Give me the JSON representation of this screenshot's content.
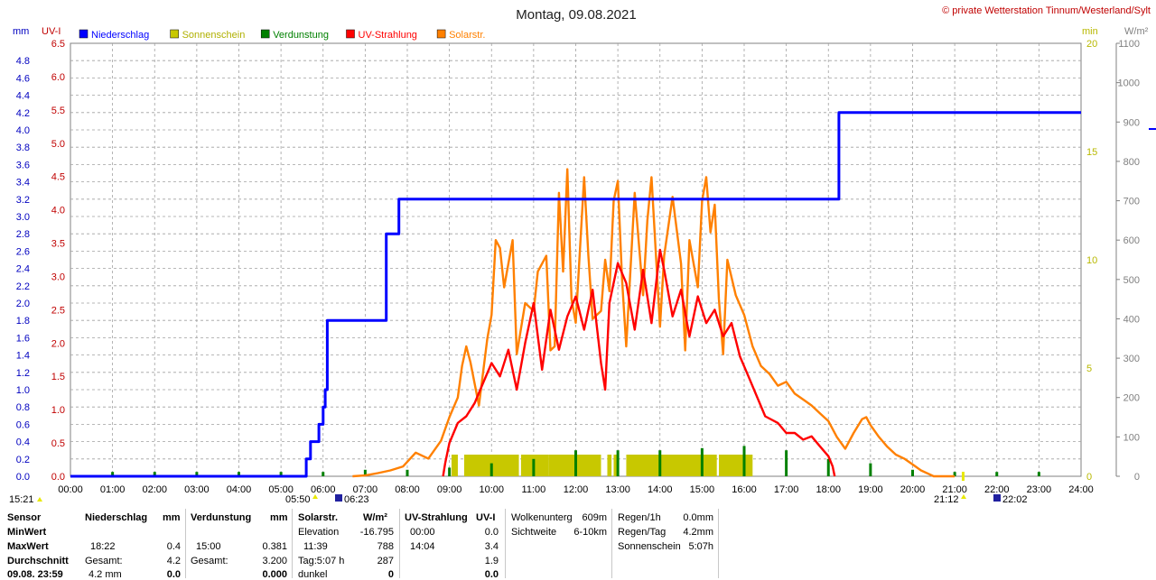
{
  "title": "Montag, 09.08.2021",
  "copyright": "© private Wetterstation Tinnum/Westerland/Sylt",
  "colors": {
    "niederschlag": "#0000ff",
    "sonnenschein": "#c8c800",
    "verdunstung": "#008000",
    "uv": "#ff0000",
    "solar": "#ff8000",
    "grid": "#a0a0a0",
    "left_axis_mm": "#0000c0",
    "left_axis_uv": "#c00000",
    "right_axis_min": "#b8b800",
    "right_axis_w": "#808080"
  },
  "chart_data": {
    "type": "line",
    "xlabels": [
      "00:00",
      "01:00",
      "02:00",
      "03:00",
      "04:00",
      "05:00",
      "06:00",
      "07:00",
      "08:00",
      "09:00",
      "10:00",
      "11:00",
      "12:00",
      "13:00",
      "14:00",
      "15:00",
      "16:00",
      "17:00",
      "18:00",
      "19:00",
      "20:00",
      "21:00",
      "22:00",
      "23:00",
      "24:00"
    ],
    "axes": {
      "mm": {
        "unit": "mm",
        "ticks": [
          "0.0",
          "0.2",
          "0.4",
          "0.6",
          "0.8",
          "1.0",
          "1.2",
          "1.4",
          "1.6",
          "1.8",
          "2.0",
          "2.2",
          "2.4",
          "2.6",
          "2.8",
          "3.0",
          "3.2",
          "3.4",
          "3.6",
          "3.8",
          "4.0",
          "4.2",
          "4.4",
          "4.6",
          "4.8"
        ],
        "range": [
          0,
          5.0
        ]
      },
      "uv": {
        "unit": "UV-I",
        "ticks": [
          "0.0",
          "0.5",
          "1.0",
          "1.5",
          "2.0",
          "2.5",
          "3.0",
          "3.5",
          "4.0",
          "4.5",
          "5.0",
          "5.5",
          "6.0",
          "6.5"
        ],
        "range": [
          0,
          6.5
        ]
      },
      "min": {
        "unit": "min",
        "ticks": [
          "0",
          "5",
          "10",
          "15",
          "20"
        ],
        "range": [
          0,
          20
        ]
      },
      "wm2": {
        "unit": "W/m²",
        "ticks": [
          "0",
          "100",
          "200",
          "300",
          "400",
          "500",
          "600",
          "700",
          "800",
          "900",
          "1000",
          "1100"
        ],
        "range": [
          0,
          1100
        ]
      }
    },
    "legend": [
      "Niederschlag",
      "Sonnenschein",
      "Verdunstung",
      "UV-Strahlung",
      "Solarstr."
    ],
    "series": [
      {
        "name": "Niederschlag",
        "axis": "mm",
        "step": true,
        "points": [
          [
            0,
            0
          ],
          [
            5.6,
            0
          ],
          [
            5.6,
            0.2
          ],
          [
            5.7,
            0.2
          ],
          [
            5.7,
            0.4
          ],
          [
            5.9,
            0.4
          ],
          [
            5.9,
            0.6
          ],
          [
            6.0,
            0.6
          ],
          [
            6.0,
            0.8
          ],
          [
            6.05,
            0.8
          ],
          [
            6.05,
            1.0
          ],
          [
            6.1,
            1.0
          ],
          [
            6.1,
            1.8
          ],
          [
            7.5,
            1.8
          ],
          [
            7.5,
            2.8
          ],
          [
            7.8,
            2.8
          ],
          [
            7.8,
            3.2
          ],
          [
            18.25,
            3.2
          ],
          [
            18.25,
            4.2
          ],
          [
            24,
            4.2
          ]
        ]
      },
      {
        "name": "Sonnenschein",
        "axis": "min",
        "bars": [
          [
            9.05,
            9.2
          ],
          [
            9.35,
            10.65
          ],
          [
            10.7,
            11.35
          ],
          [
            11.35,
            12.6
          ],
          [
            12.75,
            12.85
          ],
          [
            12.9,
            13.0
          ],
          [
            13.2,
            15.35
          ],
          [
            15.4,
            16.2
          ]
        ],
        "level": 1.0
      },
      {
        "name": "Verdunstung",
        "axis": "min",
        "ticks": [
          1.0,
          2.0,
          3.0,
          4.0,
          5.0,
          6.0,
          7.0,
          8.0,
          9.0,
          10.0,
          11.0,
          12.0,
          13.0,
          14.0,
          15.0,
          16.0,
          17.0,
          18.0,
          19.0,
          20.0,
          21.0,
          22.0,
          23.0
        ],
        "tick_values": [
          0.2,
          0.2,
          0.2,
          0.2,
          0.2,
          0.2,
          0.3,
          0.3,
          0.4,
          0.6,
          0.8,
          1.2,
          1.2,
          1.2,
          1.3,
          1.4,
          1.2,
          0.8,
          0.6,
          0.3,
          0.2,
          0.2,
          0.2
        ]
      },
      {
        "name": "UV-Strahlung",
        "axis": "uv",
        "points": [
          [
            8.85,
            0
          ],
          [
            8.9,
            0.2
          ],
          [
            9.0,
            0.5
          ],
          [
            9.2,
            0.8
          ],
          [
            9.4,
            0.9
          ],
          [
            9.6,
            1.1
          ],
          [
            9.8,
            1.4
          ],
          [
            10.0,
            1.7
          ],
          [
            10.2,
            1.5
          ],
          [
            10.4,
            1.9
          ],
          [
            10.6,
            1.3
          ],
          [
            10.8,
            2.0
          ],
          [
            11.0,
            2.6
          ],
          [
            11.2,
            1.6
          ],
          [
            11.4,
            2.5
          ],
          [
            11.6,
            1.9
          ],
          [
            11.8,
            2.4
          ],
          [
            12.0,
            2.7
          ],
          [
            12.2,
            2.2
          ],
          [
            12.4,
            2.8
          ],
          [
            12.6,
            1.7
          ],
          [
            12.7,
            1.3
          ],
          [
            12.8,
            2.6
          ],
          [
            13.0,
            3.2
          ],
          [
            13.2,
            2.9
          ],
          [
            13.4,
            2.2
          ],
          [
            13.6,
            3.1
          ],
          [
            13.8,
            2.3
          ],
          [
            14.0,
            3.4
          ],
          [
            14.1,
            3.1
          ],
          [
            14.3,
            2.4
          ],
          [
            14.5,
            2.8
          ],
          [
            14.7,
            2.1
          ],
          [
            14.9,
            2.7
          ],
          [
            15.1,
            2.3
          ],
          [
            15.3,
            2.5
          ],
          [
            15.5,
            2.1
          ],
          [
            15.7,
            2.3
          ],
          [
            15.9,
            1.8
          ],
          [
            16.1,
            1.5
          ],
          [
            16.3,
            1.2
          ],
          [
            16.5,
            0.9
          ],
          [
            16.8,
            0.8
          ],
          [
            17.0,
            0.65
          ],
          [
            17.2,
            0.65
          ],
          [
            17.4,
            0.55
          ],
          [
            17.6,
            0.6
          ],
          [
            17.8,
            0.45
          ],
          [
            18.0,
            0.3
          ],
          [
            18.1,
            0.15
          ],
          [
            18.15,
            0
          ]
        ]
      },
      {
        "name": "Solarstr.",
        "axis": "wm2",
        "points": [
          [
            6.7,
            0
          ],
          [
            7.0,
            2
          ],
          [
            7.3,
            8
          ],
          [
            7.6,
            15
          ],
          [
            7.9,
            25
          ],
          [
            8.2,
            60
          ],
          [
            8.5,
            45
          ],
          [
            8.8,
            90
          ],
          [
            9.0,
            150
          ],
          [
            9.2,
            200
          ],
          [
            9.3,
            280
          ],
          [
            9.4,
            330
          ],
          [
            9.5,
            290
          ],
          [
            9.7,
            180
          ],
          [
            9.9,
            350
          ],
          [
            10.0,
            410
          ],
          [
            10.1,
            600
          ],
          [
            10.2,
            580
          ],
          [
            10.3,
            480
          ],
          [
            10.5,
            600
          ],
          [
            10.6,
            310
          ],
          [
            10.8,
            440
          ],
          [
            11.0,
            420
          ],
          [
            11.1,
            520
          ],
          [
            11.3,
            560
          ],
          [
            11.4,
            320
          ],
          [
            11.5,
            330
          ],
          [
            11.6,
            720
          ],
          [
            11.7,
            520
          ],
          [
            11.8,
            780
          ],
          [
            11.9,
            450
          ],
          [
            12.0,
            390
          ],
          [
            12.2,
            760
          ],
          [
            12.3,
            560
          ],
          [
            12.4,
            400
          ],
          [
            12.6,
            420
          ],
          [
            12.7,
            550
          ],
          [
            12.8,
            470
          ],
          [
            12.9,
            700
          ],
          [
            13.0,
            750
          ],
          [
            13.1,
            500
          ],
          [
            13.2,
            330
          ],
          [
            13.4,
            720
          ],
          [
            13.6,
            460
          ],
          [
            13.7,
            650
          ],
          [
            13.8,
            760
          ],
          [
            14.0,
            380
          ],
          [
            14.1,
            560
          ],
          [
            14.3,
            710
          ],
          [
            14.5,
            540
          ],
          [
            14.6,
            320
          ],
          [
            14.7,
            600
          ],
          [
            14.9,
            480
          ],
          [
            15.0,
            700
          ],
          [
            15.1,
            760
          ],
          [
            15.2,
            620
          ],
          [
            15.3,
            690
          ],
          [
            15.4,
            450
          ],
          [
            15.5,
            310
          ],
          [
            15.6,
            550
          ],
          [
            15.8,
            460
          ],
          [
            16.0,
            410
          ],
          [
            16.2,
            330
          ],
          [
            16.4,
            280
          ],
          [
            16.6,
            260
          ],
          [
            16.8,
            230
          ],
          [
            17.0,
            240
          ],
          [
            17.2,
            210
          ],
          [
            17.4,
            195
          ],
          [
            17.6,
            180
          ],
          [
            17.8,
            160
          ],
          [
            18.0,
            140
          ],
          [
            18.2,
            100
          ],
          [
            18.4,
            70
          ],
          [
            18.6,
            110
          ],
          [
            18.8,
            145
          ],
          [
            18.9,
            150
          ],
          [
            19.0,
            130
          ],
          [
            19.2,
            100
          ],
          [
            19.4,
            75
          ],
          [
            19.6,
            55
          ],
          [
            19.8,
            45
          ],
          [
            20.0,
            30
          ],
          [
            20.2,
            15
          ],
          [
            20.4,
            5
          ],
          [
            20.5,
            0
          ],
          [
            21.0,
            0
          ]
        ]
      }
    ],
    "annotations": {
      "left_time": "15:21",
      "sunrise_start": "05:50",
      "sunrise": "06:23",
      "sunset": "21:12",
      "dusk": "22:02"
    }
  },
  "stats": {
    "row_labels": [
      "Sensor",
      "MinWert",
      "MaxWert",
      "Durchschnitt"
    ],
    "footer_date": "09.08. 23:59",
    "niederschlag": {
      "header": "Niederschlag",
      "unit": "mm",
      "max_time": "18:22",
      "max_value": "0.4",
      "gesamt_label": "Gesamt:",
      "gesamt_value": "4.2",
      "foot_a": "4.2 mm",
      "foot_b": "0.0"
    },
    "verdunstung": {
      "header": "Verdunstung",
      "unit": "mm",
      "max_time": "15:00",
      "max_value": "0.381",
      "gesamt_label": "Gesamt:",
      "gesamt_value": "3.200",
      "foot_b": "0.000"
    },
    "solar": {
      "header": "Solarstr.",
      "unit": "W/m²",
      "row1_label": "Elevation",
      "row1_value": "-16.795",
      "max_time": "11:39",
      "max_value": "788",
      "tag_label": "Tag:5:07 h",
      "tag_value": "287",
      "dunkel_label": "dunkel",
      "dunkel_value": "0"
    },
    "uv": {
      "header": "UV-Strahlung",
      "unit": "UV-I",
      "min_time": "00:00",
      "min_value": "0.0",
      "max_time": "14:04",
      "max_value": "3.4",
      "avg_value": "1.9",
      "foot_b": "0.0"
    },
    "wolken": {
      "label1": "Wolkenunterg",
      "value1": "609m",
      "label2": "Sichtweite",
      "value2": "6-10km"
    },
    "regen": {
      "label1": "Regen/1h",
      "value1": "0.0mm",
      "label2": "Regen/Tag",
      "value2": "4.2mm",
      "label3": "Sonnenschein",
      "value3": "5:07h"
    }
  }
}
